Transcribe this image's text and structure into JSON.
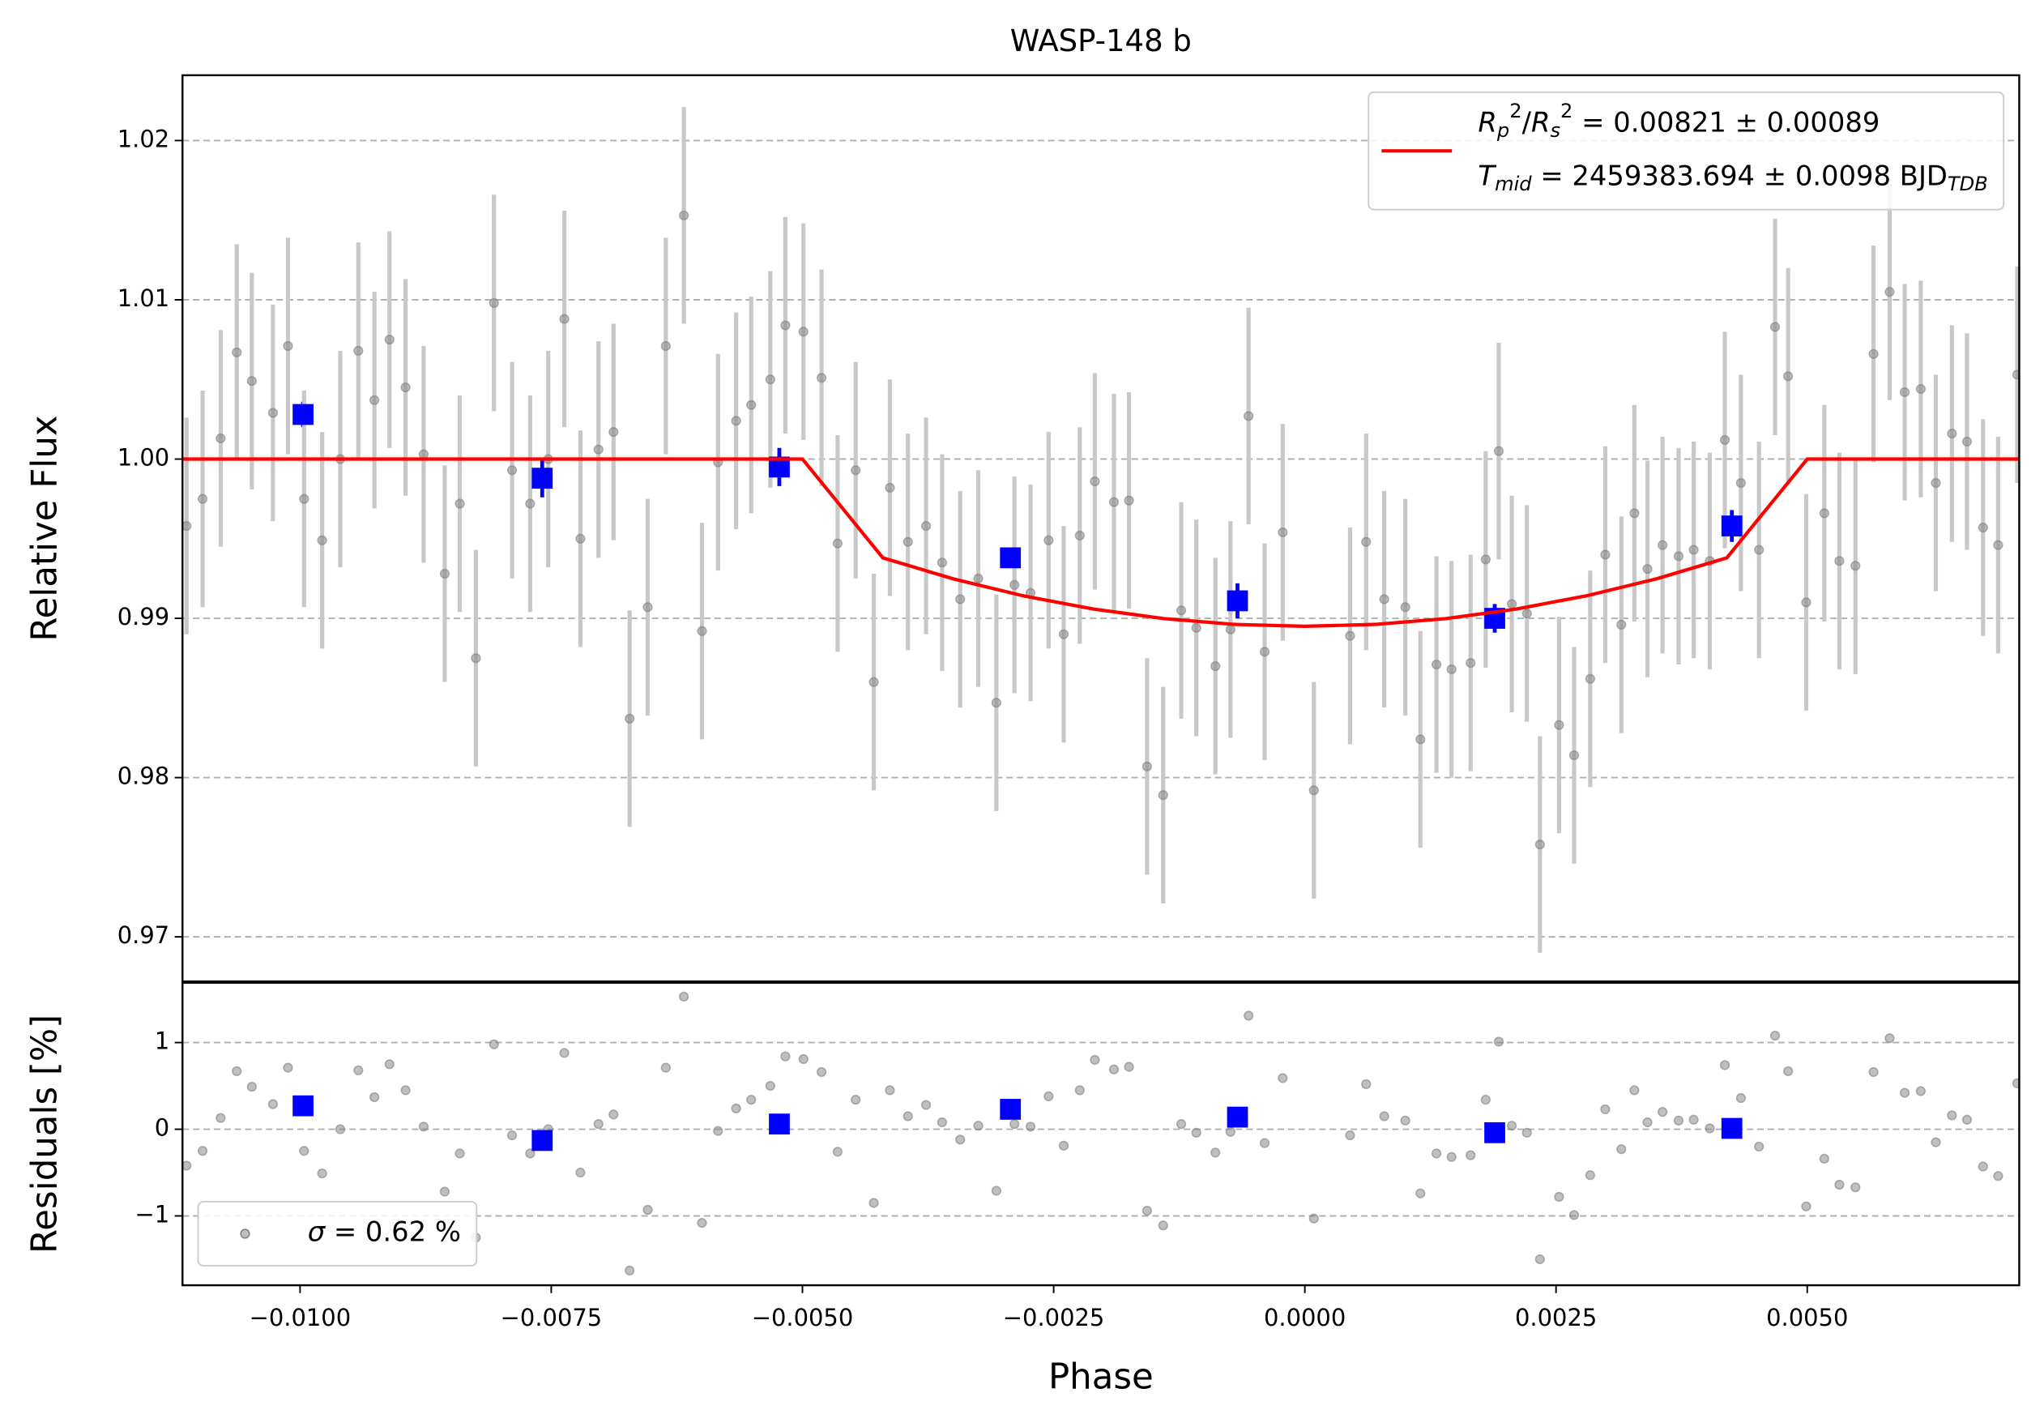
{
  "chart_data": [
    {
      "type": "scatter",
      "title": "WASP-148 b",
      "ylabel": "Relative Flux",
      "xlim": [
        -0.01117,
        0.00711
      ],
      "ylim": [
        0.9672,
        1.0241
      ],
      "yticks": [
        0.97,
        0.98,
        0.99,
        {
          "value": 1.0,
          "label": "1.00"
        },
        1.01,
        1.02
      ],
      "grid": true,
      "legend": "upper right",
      "series": [
        {
          "type": "errorbar",
          "color": "#808080",
          "ecolor": "#c8c8c8",
          "marker": "circle",
          "error": 0.0068,
          "x": [
            -0.01113,
            -0.01097,
            -0.01079,
            -0.01063,
            -0.01048,
            -0.01027,
            -0.01012,
            -0.00996,
            -0.00978,
            -0.0096,
            -0.00942,
            -0.00926,
            -0.00911,
            -0.00895,
            -0.00877,
            -0.00856,
            -0.00841,
            -0.00825,
            -0.00807,
            -0.00789,
            -0.00771,
            -0.00753,
            -0.00737,
            -0.00721,
            -0.00703,
            -0.00688,
            -0.00672,
            -0.00654,
            -0.00636,
            -0.00618,
            -0.006,
            -0.00584,
            -0.00566,
            -0.00551,
            -0.00532,
            -0.00517,
            -0.00499,
            -0.00481,
            -0.00465,
            -0.00447,
            -0.00429,
            -0.00413,
            -0.00395,
            -0.00377,
            -0.00361,
            -0.00343,
            -0.00325,
            -0.00307,
            -0.00289,
            -0.00273,
            -0.00255,
            -0.0024,
            -0.00224,
            -0.00209,
            -0.0019,
            -0.00175,
            -0.00157,
            -0.00141,
            -0.00123,
            -0.00108,
            -0.00089,
            -0.00074,
            -0.00056,
            -0.0004,
            -0.00022,
            9e-05,
            0.00045,
            0.00061,
            0.00079,
            0.001,
            0.00115,
            0.00131,
            0.00146,
            0.00165,
            0.0018,
            0.00193,
            0.00206,
            0.00221,
            0.00234,
            0.00253,
            0.00268,
            0.00284,
            0.00299,
            0.00315,
            0.00328,
            0.00341,
            0.00356,
            0.00372,
            0.00387,
            0.00403,
            0.00418,
            0.00434,
            0.00452,
            0.00468,
            0.00481,
            0.00499,
            0.00517,
            0.00532,
            0.00548,
            0.00566,
            0.00582,
            0.00597,
            0.00613,
            0.00628,
            0.00644,
            0.00659,
            0.00675,
            0.0069,
            0.00709
          ],
          "values": [
            0.9958,
            0.9975,
            1.0013,
            1.0067,
            1.0049,
            1.0029,
            1.0071,
            0.9975,
            0.9949,
            1.0,
            1.0068,
            1.0037,
            1.0075,
            1.0045,
            1.0003,
            0.9928,
            0.9972,
            0.9875,
            1.0098,
            0.9993,
            0.9972,
            1.0,
            1.0088,
            0.995,
            1.0006,
            1.0017,
            0.9837,
            0.9907,
            1.0071,
            1.0153,
            0.9892,
            0.9998,
            1.0024,
            1.0034,
            1.005,
            1.0084,
            1.008,
            1.0051,
            0.9947,
            0.9993,
            0.986,
            0.9982,
            0.9948,
            0.9958,
            0.9935,
            0.9912,
            0.9925,
            0.9847,
            0.9921,
            0.9916,
            0.9949,
            0.989,
            0.9952,
            0.9986,
            0.9973,
            0.9974,
            0.9807,
            0.9789,
            0.9905,
            0.9894,
            0.987,
            0.9893,
            1.0027,
            0.9879,
            0.9954,
            0.9792,
            0.9889,
            0.9948,
            0.9912,
            0.9907,
            0.9824,
            0.9871,
            0.9868,
            0.9872,
            0.9937,
            1.0005,
            0.9909,
            0.9903,
            0.9758,
            0.9833,
            0.9814,
            0.9862,
            0.994,
            0.9896,
            0.9966,
            0.9931,
            0.9946,
            0.9939,
            0.9943,
            0.9936,
            1.0012,
            0.9985,
            0.9943,
            1.0083,
            1.0052,
            0.991,
            0.9966,
            0.9936,
            0.9933,
            1.0066,
            1.0105,
            1.0042,
            1.0044,
            0.9985,
            1.0016,
            1.0011,
            0.9957,
            0.9946,
            1.0053
          ]
        },
        {
          "type": "errorbar",
          "color": "#0000ff",
          "ecolor": "#0000ff",
          "marker": "square",
          "x": [
            -0.00997,
            -0.00759,
            -0.00523,
            -0.00293,
            -0.00067,
            0.00189,
            0.00425
          ],
          "values": [
            1.0028,
            0.9988,
            0.9995,
            0.9938,
            0.9911,
            0.99,
            0.9958
          ],
          "errors": [
            0.0008,
            0.0012,
            0.0012,
            0.0006,
            0.0011,
            0.0009,
            0.001
          ]
        },
        {
          "type": "line",
          "color": "#ff0000",
          "name": [
            [
              {
                "text": "R",
                "style": "italic"
              },
              {
                "text": "p",
                "style": "sub"
              },
              {
                "text": "2",
                "style": "sup"
              },
              {
                "text": "/",
                "style": "normal"
              },
              {
                "text": "R",
                "style": "italic"
              },
              {
                "text": "s",
                "style": "sub"
              },
              {
                "text": "2",
                "style": "sup"
              },
              {
                "text": " = 0.00821 ± 0.00089",
                "style": "normal"
              }
            ],
            [
              {
                "text": "T",
                "style": "italic"
              },
              {
                "text": "mid",
                "style": "sub"
              },
              {
                "text": " = 2459383.694 ± 0.0098 BJD",
                "style": "normal"
              },
              {
                "text": "TDB",
                "style": "sub"
              }
            ]
          ],
          "x": [
            -0.01117,
            -0.005,
            -0.0042,
            -0.0035,
            -0.0028,
            -0.0021,
            -0.0014,
            -0.0007,
            0,
            0.0007,
            0.0014,
            0.0021,
            0.0028,
            0.0035,
            0.0042,
            0.005,
            0.00711
          ],
          "values": [
            1,
            1,
            0.9938,
            0.99248,
            0.99141,
            0.99058,
            0.98998,
            0.98962,
            0.9895,
            0.98962,
            0.98998,
            0.99058,
            0.99141,
            0.99248,
            0.9938,
            1,
            1
          ]
        }
      ]
    },
    {
      "type": "scatter",
      "xlabel": "Phase",
      "ylabel": "Residuals [%]",
      "xlim": [
        -0.01117,
        0.00711
      ],
      "ylim": [
        -1.8,
        1.69
      ],
      "xticks": [
        {
          "value": -0.01,
          "label": "−0.0100"
        },
        {
          "value": -0.0075,
          "label": "−0.0075"
        },
        {
          "value": -0.005,
          "label": "−0.0050"
        },
        {
          "value": -0.0025,
          "label": "−0.0025"
        },
        {
          "value": 0,
          "label": "0.0000"
        },
        {
          "value": 0.0025,
          "label": "0.0025"
        },
        {
          "value": 0.005,
          "label": "0.0050"
        }
      ],
      "yticks": [
        {
          "value": -1,
          "label": "−1"
        },
        0,
        1
      ],
      "grid": true,
      "legend": "lower left",
      "series": [
        {
          "type": "scatter",
          "color": "#808080",
          "marker": "circle",
          "name": [
            [
              {
                "text": "σ",
                "style": "italic"
              },
              {
                "text": " = 0.62 %",
                "style": "normal"
              }
            ]
          ],
          "x": [
            -0.01113,
            -0.01097,
            -0.01079,
            -0.01063,
            -0.01048,
            -0.01027,
            -0.01012,
            -0.00996,
            -0.00978,
            -0.0096,
            -0.00942,
            -0.00926,
            -0.00911,
            -0.00895,
            -0.00877,
            -0.00856,
            -0.00841,
            -0.00825,
            -0.00807,
            -0.00789,
            -0.00771,
            -0.00753,
            -0.00737,
            -0.00721,
            -0.00703,
            -0.00688,
            -0.00672,
            -0.00654,
            -0.00636,
            -0.00618,
            -0.006,
            -0.00584,
            -0.00566,
            -0.00551,
            -0.00532,
            -0.00517,
            -0.00499,
            -0.00481,
            -0.00465,
            -0.00447,
            -0.00429,
            -0.00413,
            -0.00395,
            -0.00377,
            -0.00361,
            -0.00343,
            -0.00325,
            -0.00307,
            -0.00289,
            -0.00273,
            -0.00255,
            -0.0024,
            -0.00224,
            -0.00209,
            -0.0019,
            -0.00175,
            -0.00157,
            -0.00141,
            -0.00123,
            -0.00108,
            -0.00089,
            -0.00074,
            -0.00056,
            -0.0004,
            -0.00022,
            9e-05,
            0.00045,
            0.00061,
            0.00079,
            0.001,
            0.00115,
            0.00131,
            0.00146,
            0.00165,
            0.0018,
            0.00193,
            0.00206,
            0.00221,
            0.00234,
            0.00253,
            0.00268,
            0.00284,
            0.00299,
            0.00315,
            0.00328,
            0.00341,
            0.00356,
            0.00372,
            0.00387,
            0.00403,
            0.00418,
            0.00434,
            0.00452,
            0.00468,
            0.00481,
            0.00499,
            0.00517,
            0.00532,
            0.00548,
            0.00566,
            0.00582,
            0.00597,
            0.00613,
            0.00628,
            0.00644,
            0.00659,
            0.00675,
            0.0069,
            0.00709
          ],
          "values": [
            -0.42,
            -0.25,
            0.13,
            0.67,
            0.49,
            0.29,
            0.71,
            -0.25,
            -0.51,
            0,
            0.68,
            0.37,
            0.75,
            0.45,
            0.03,
            -0.72,
            -0.28,
            -1.25,
            0.98,
            -0.07,
            -0.28,
            0,
            0.88,
            -0.5,
            0.06,
            0.17,
            -1.63,
            -0.93,
            0.71,
            1.53,
            -1.08,
            -0.02,
            0.24,
            0.34,
            0.5,
            0.84,
            0.81,
            0.66,
            -0.26,
            0.34,
            -0.85,
            0.45,
            0.15,
            0.28,
            0.08,
            -0.12,
            0.04,
            -0.71,
            0.06,
            0.03,
            0.38,
            -0.19,
            0.45,
            0.8,
            0.69,
            0.72,
            -0.94,
            -1.11,
            0.06,
            -0.04,
            -0.27,
            -0.03,
            1.31,
            -0.16,
            0.59,
            -1.03,
            -0.07,
            0.52,
            0.15,
            0.1,
            -0.74,
            -0.28,
            -0.32,
            -0.3,
            0.34,
            1.01,
            0.04,
            -0.04,
            -1.5,
            -0.78,
            -0.99,
            -0.53,
            0.23,
            -0.23,
            0.45,
            0.08,
            0.2,
            0.1,
            0.11,
            0.01,
            0.74,
            0.36,
            -0.2,
            1.08,
            0.67,
            -0.89,
            -0.34,
            -0.64,
            -0.67,
            0.66,
            1.05,
            0.42,
            0.44,
            -0.15,
            0.16,
            0.11,
            -0.43,
            -0.54,
            0.53
          ]
        },
        {
          "type": "scatter",
          "color": "#0000ff",
          "marker": "square",
          "x": [
            -0.00997,
            -0.00759,
            -0.00523,
            -0.00293,
            -0.00067,
            0.00189,
            0.00425
          ],
          "values": [
            0.27,
            -0.13,
            0.06,
            0.23,
            0.14,
            -0.04,
            0.01
          ]
        }
      ]
    }
  ]
}
